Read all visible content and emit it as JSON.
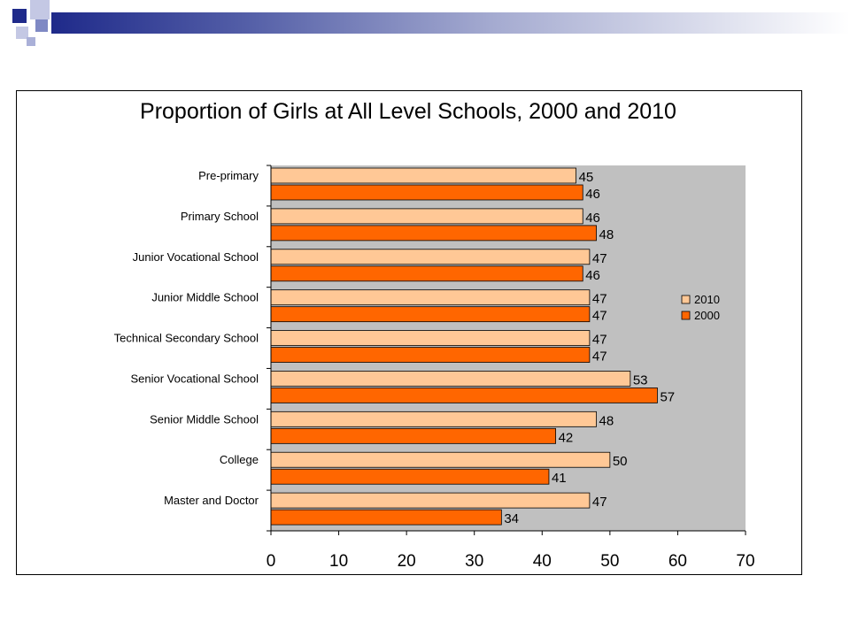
{
  "colors": {
    "header_gradient_dark": "#1f2a8a",
    "square_dark": "#1f2a8a",
    "square_mid": "#7f89c4",
    "square_light": "#c4c8e4",
    "plot_background": "#c0c0c0",
    "series_2010": "#ffc896",
    "series_2000": "#ff6600"
  },
  "chart_data": {
    "type": "bar",
    "orientation": "horizontal",
    "title": "Proportion of Girls  at All Level Schools, 2000 and 2010",
    "xlabel": "",
    "ylabel": "",
    "xlim": [
      0,
      70
    ],
    "xticks": [
      "0",
      "10",
      "20",
      "30",
      "40",
      "50",
      "60",
      "70"
    ],
    "categories": [
      "Pre-primary",
      "Primary School",
      "Junior Vocational  School",
      "Junior Middle School",
      "Technical Secondary School",
      "Senior Vocational School",
      "Senior Middle School",
      "College",
      "Master and Doctor"
    ],
    "series": [
      {
        "name": "2010",
        "color": "#ffc896",
        "values": [
          45,
          46,
          47,
          47,
          47,
          53,
          48,
          50,
          47
        ]
      },
      {
        "name": "2000",
        "color": "#ff6600",
        "values": [
          46,
          48,
          46,
          47,
          47,
          57,
          42,
          41,
          34
        ]
      }
    ],
    "grid": false,
    "legend_position": "right"
  }
}
